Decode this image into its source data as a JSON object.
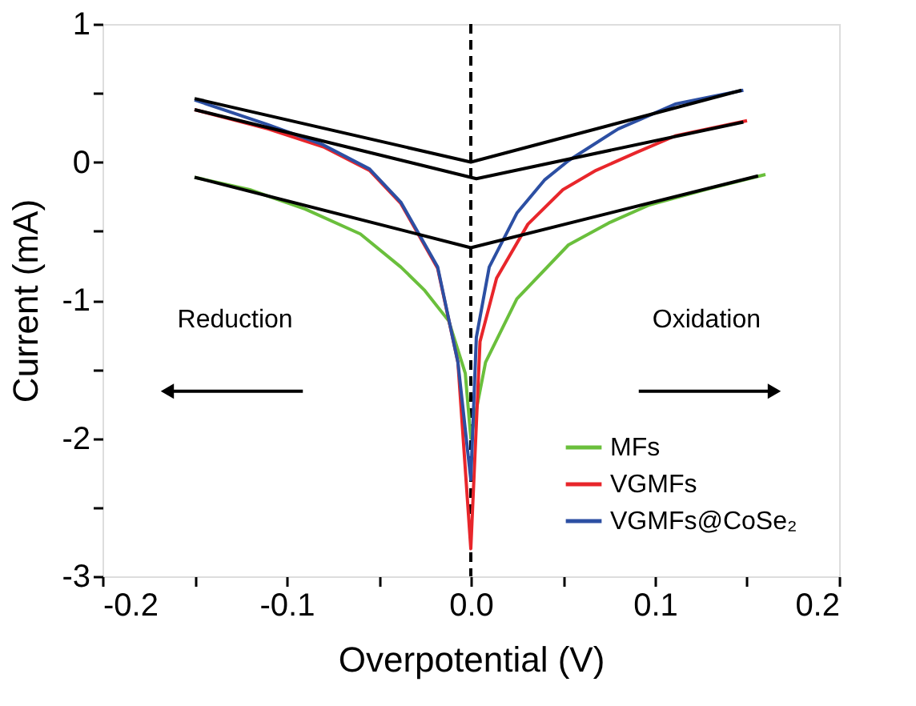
{
  "chart_data": {
    "type": "line",
    "xlabel": "Overpotential (V)",
    "ylabel": "Current (mA)",
    "xlim": [
      -0.2,
      0.2
    ],
    "ylim": [
      -3,
      1
    ],
    "xticks": [
      {
        "value": -0.2,
        "label": "-0.2"
      },
      {
        "value": -0.15,
        "label": null
      },
      {
        "value": -0.1,
        "label": "-0.1"
      },
      {
        "value": -0.05,
        "label": null
      },
      {
        "value": 0,
        "label": "0.0"
      },
      {
        "value": 0.05,
        "label": null
      },
      {
        "value": 0.1,
        "label": "0.1"
      },
      {
        "value": 0.15,
        "label": null
      },
      {
        "value": 0.2,
        "label": "0.2"
      }
    ],
    "yticks": [
      -3,
      {
        "value": -2.5,
        "label": null
      },
      -2,
      {
        "value": -1.5,
        "label": null
      },
      -1,
      {
        "value": -0.5,
        "label": null
      },
      0,
      {
        "value": 0.5,
        "label": null
      },
      1
    ],
    "grid": false,
    "legend": "bottom right",
    "marker": "none",
    "line_style": "solid",
    "series": [
      {
        "name": "MFs",
        "color": "#6abf3c",
        "x": [
          -0.15,
          -0.12,
          -0.09,
          -0.06,
          -0.038,
          -0.025,
          -0.012,
          -0.003,
          0,
          0.008,
          0.025,
          0.053,
          0.075,
          0.097,
          0.13,
          0.16
        ],
        "values": [
          -0.11,
          -0.2,
          -0.34,
          -0.52,
          -0.76,
          -0.93,
          -1.15,
          -1.53,
          -2.0,
          -1.45,
          -0.99,
          -0.6,
          -0.44,
          -0.31,
          -0.19,
          -0.09
        ]
      },
      {
        "name": "VGMFs",
        "color": "#e8262b",
        "x": [
          -0.15,
          -0.11,
          -0.08,
          -0.055,
          -0.038,
          -0.018,
          -0.007,
          0,
          0.005,
          0.014,
          0.031,
          0.05,
          0.068,
          0.09,
          0.111,
          0.15
        ],
        "values": [
          0.38,
          0.24,
          0.11,
          -0.06,
          -0.3,
          -0.77,
          -1.45,
          -2.8,
          -1.3,
          -0.84,
          -0.45,
          -0.2,
          -0.06,
          0.07,
          0.19,
          0.3
        ]
      },
      {
        "name": "VGMFs@CoSe₂",
        "color": "#2c4fa3",
        "x": [
          -0.15,
          -0.11,
          -0.081,
          -0.055,
          -0.038,
          -0.018,
          -0.007,
          0,
          0.003,
          0.01,
          0.025,
          0.04,
          0.053,
          0.08,
          0.111,
          0.148
        ],
        "values": [
          0.45,
          0.27,
          0.13,
          -0.05,
          -0.29,
          -0.76,
          -1.45,
          -2.3,
          -1.27,
          -0.76,
          -0.37,
          -0.13,
          0.01,
          0.24,
          0.42,
          0.52
        ]
      },
      {
        "color": "#000000",
        "x": [
          -0.15,
          0,
          0.147
        ],
        "values": [
          0.46,
          0.0,
          0.52
        ]
      },
      {
        "color": "#000000",
        "x": [
          -0.15,
          0.003,
          0.148
        ],
        "values": [
          0.38,
          -0.12,
          0.29
        ]
      },
      {
        "color": "#000000",
        "x": [
          -0.15,
          0,
          0.156
        ],
        "values": [
          -0.11,
          -0.62,
          -0.1
        ]
      }
    ],
    "ref_lines": [
      {
        "axis": "x",
        "value": 0,
        "color": "#000000",
        "line_style": "dashed"
      }
    ],
    "annotations": [
      "Reduction",
      "Oxidation"
    ]
  }
}
